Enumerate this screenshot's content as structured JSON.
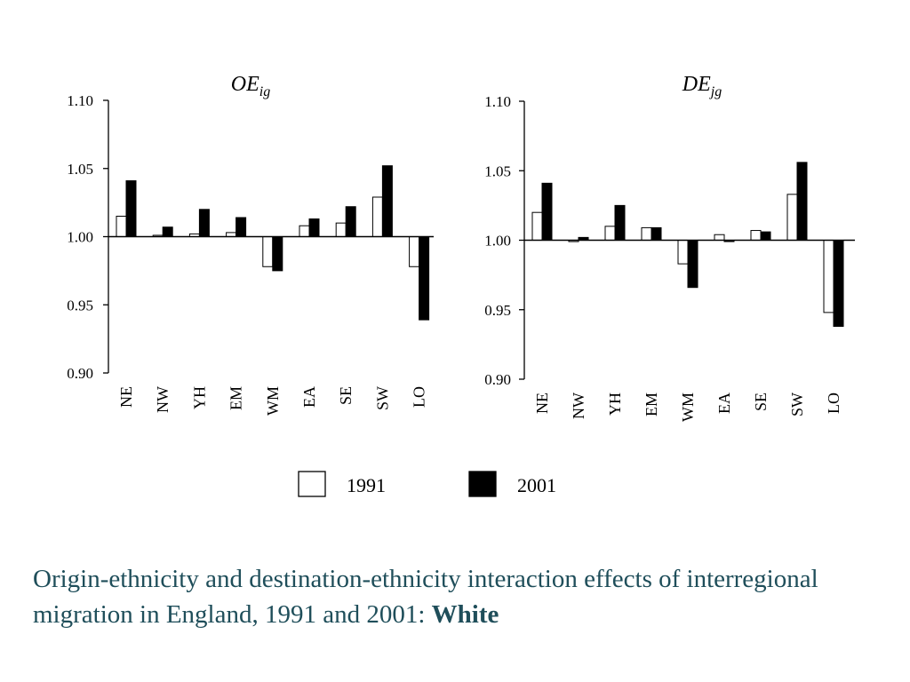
{
  "chart_data": [
    {
      "type": "bar",
      "title_main": "OE",
      "title_sub": "ig",
      "categories": [
        "NE",
        "NW",
        "YH",
        "EM",
        "WM",
        "EA",
        "SE",
        "SW",
        "LO"
      ],
      "baseline": 1.0,
      "ylim": [
        0.9,
        1.1
      ],
      "yticks": [
        "1.10",
        "1.05",
        "1.00",
        "0.95",
        "0.90"
      ],
      "series": [
        {
          "name": "1991",
          "values": [
            1.015,
            1.001,
            1.002,
            1.003,
            0.978,
            1.008,
            1.01,
            1.029,
            0.978
          ]
        },
        {
          "name": "2001",
          "values": [
            1.041,
            1.007,
            1.02,
            1.014,
            0.975,
            1.013,
            1.022,
            1.052,
            0.939
          ]
        }
      ]
    },
    {
      "type": "bar",
      "title_main": "DE",
      "title_sub": "jg",
      "categories": [
        "NE",
        "NW",
        "YH",
        "EM",
        "WM",
        "EA",
        "SE",
        "SW",
        "LO"
      ],
      "baseline": 1.0,
      "ylim": [
        0.9,
        1.1
      ],
      "yticks": [
        "1.10",
        "1.05",
        "1.00",
        "0.95",
        "0.90"
      ],
      "series": [
        {
          "name": "1991",
          "values": [
            1.02,
            0.999,
            1.01,
            1.009,
            0.983,
            1.004,
            1.007,
            1.033,
            0.948
          ]
        },
        {
          "name": "2001",
          "values": [
            1.041,
            1.002,
            1.025,
            1.009,
            0.966,
            0.999,
            1.006,
            1.056,
            0.938
          ]
        }
      ]
    }
  ],
  "legend": [
    {
      "label": "1991",
      "color": "#ffffff"
    },
    {
      "label": "2001",
      "color": "#000000"
    }
  ],
  "caption": {
    "text": "Origin-ethnicity and destination-ethnicity interaction effects of interregional migration in England, 1991 and 2001: ",
    "bold": "White"
  }
}
